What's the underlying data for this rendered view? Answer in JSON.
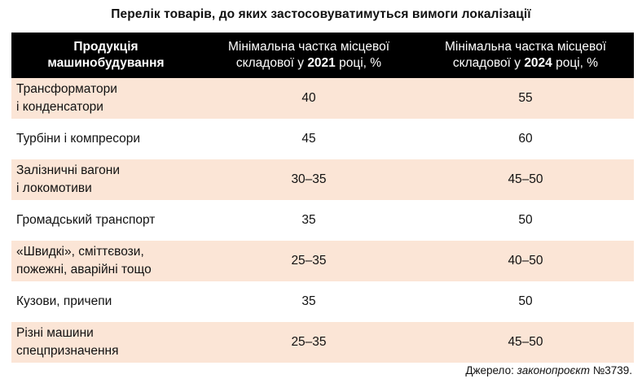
{
  "title": "Перелік товарів,  до яких застосовуватимуться  вимоги локалізації",
  "header": {
    "product": "Продукція машинобудування",
    "col_2021": {
      "before": "Мінімальна частка місцевої складової у ",
      "year": "2021",
      "after": " році, %"
    },
    "col_2024": {
      "before": "Мінімальна частка місцевої складової у ",
      "year": "2024",
      "after": " році, %"
    }
  },
  "chart_data": {
    "type": "table",
    "title": "Перелік товарів,  до яких застосовуватимуться  вимоги локалізації",
    "columns": [
      "Продукція машинобудування",
      "Мінімальна частка місцевої складової у 2021 році, %",
      "Мінімальна частка місцевої складової у 2024 році, %"
    ],
    "rows": [
      {
        "product": [
          "Трансформатори",
          "і конденсатори"
        ],
        "v2021": "40",
        "v2024": "55"
      },
      {
        "product": [
          "Турбіни і компресори"
        ],
        "v2021": "45",
        "v2024": "60"
      },
      {
        "product": [
          "Залізничні вагони",
          "і локомотиви"
        ],
        "v2021": "30–35",
        "v2024": "45–50"
      },
      {
        "product": [
          "Громадський транспорт"
        ],
        "v2021": "35",
        "v2024": "50"
      },
      {
        "product": [
          "«Швидкі», сміттєвози,",
          "пожежні, аварійні тощо"
        ],
        "v2021": "25–35",
        "v2024": "40–50"
      },
      {
        "product": [
          "Кузови, причепи"
        ],
        "v2021": "35",
        "v2024": "50"
      },
      {
        "product": [
          "Різні машини",
          "спецпризначення"
        ],
        "v2021": "25–35",
        "v2024": "45–50"
      }
    ]
  },
  "source": {
    "label": "Джерело: ",
    "text": "законопроєкт",
    "number": "  №3739."
  },
  "colors": {
    "header_bg": "#000000",
    "header_text": "#ffffff",
    "stripe": "#fbe5d6"
  }
}
